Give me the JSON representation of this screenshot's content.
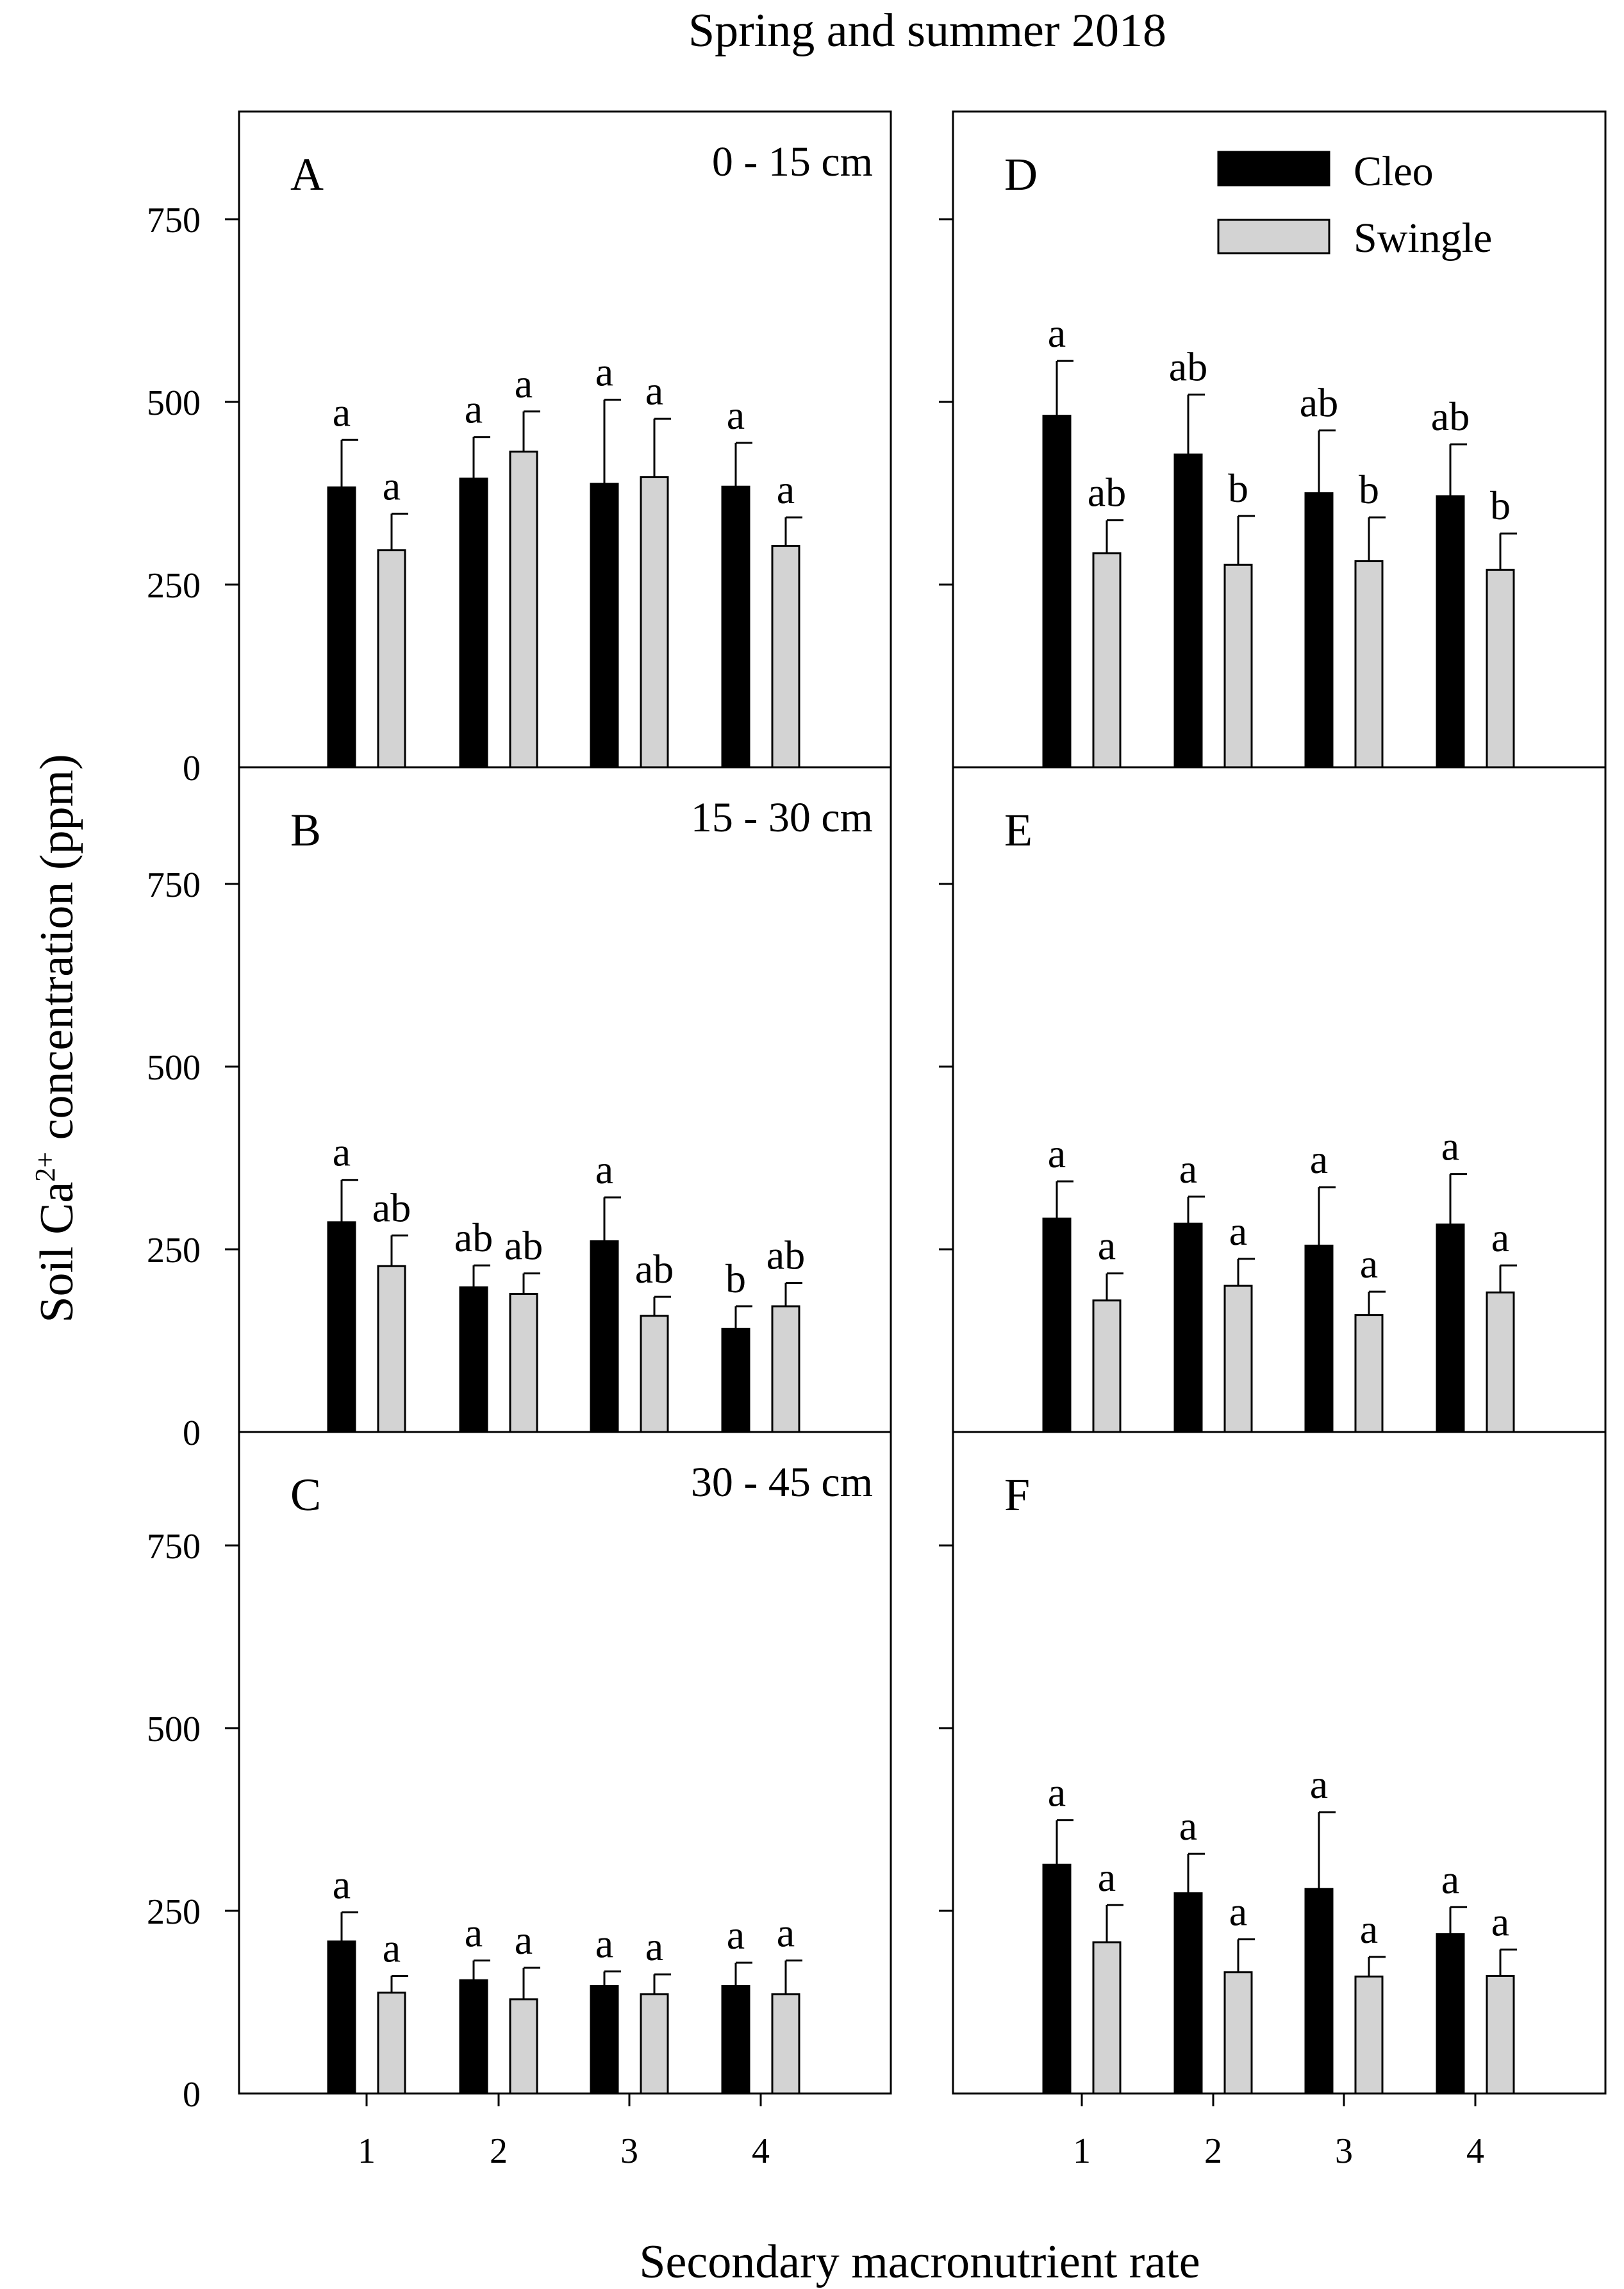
{
  "title": "Spring and summer 2018",
  "xlabel": "Secondary macronutrient rate",
  "ylabel": {
    "prefix": "Soil Ca",
    "sup": "2+",
    "suffix": " concentration (ppm)"
  },
  "legend": [
    {
      "name": "Cleo",
      "color": "#000000"
    },
    {
      "name": "Swingle",
      "color": "#d3d3d3"
    }
  ],
  "colors": {
    "cleo": "#000000",
    "swingle": "#d3d3d3",
    "frame": "#000000"
  },
  "chart_data": {
    "type": "bar",
    "categories": [
      "1",
      "2",
      "3",
      "4"
    ],
    "ylim": [
      0,
      900
    ],
    "yticks": [
      0,
      250,
      500,
      750
    ],
    "panels": [
      {
        "id": "A",
        "depth": "0 - 15 cm",
        "series": [
          {
            "name": "Cleo",
            "values": [
              383,
              395,
              388,
              384
            ],
            "errors": [
              65,
              57,
              115,
              60
            ],
            "letters": [
              "a",
              "a",
              "a",
              "a"
            ]
          },
          {
            "name": "Swingle",
            "values": [
              297,
              432,
              397,
              303
            ],
            "errors": [
              50,
              55,
              80,
              39
            ],
            "letters": [
              "a",
              "a",
              "a",
              "a"
            ]
          }
        ]
      },
      {
        "id": "B",
        "depth": "15 - 30 cm",
        "series": [
          {
            "name": "Cleo",
            "values": [
              287,
              198,
              261,
              141
            ],
            "errors": [
              58,
              30,
              60,
              31
            ],
            "letters": [
              "a",
              "ab",
              "a",
              "b"
            ]
          },
          {
            "name": "Swingle",
            "values": [
              227,
              189,
              159,
              172
            ],
            "errors": [
              42,
              28,
              26,
              32
            ],
            "letters": [
              "ab",
              "ab",
              "ab",
              "ab"
            ]
          }
        ]
      },
      {
        "id": "C",
        "depth": "30 - 45 cm",
        "series": [
          {
            "name": "Cleo",
            "values": [
              208,
              155,
              147,
              147
            ],
            "errors": [
              40,
              27,
              20,
              32
            ],
            "letters": [
              "a",
              "a",
              "a",
              "a"
            ]
          },
          {
            "name": "Swingle",
            "values": [
              138,
              129,
              136,
              136
            ],
            "errors": [
              23,
              43,
              27,
              46
            ],
            "letters": [
              "a",
              "a",
              "a",
              "a"
            ]
          }
        ]
      },
      {
        "id": "D",
        "depth": "",
        "series": [
          {
            "name": "Cleo",
            "values": [
              481,
              428,
              375,
              371
            ],
            "errors": [
              75,
              82,
              86,
              71
            ],
            "letters": [
              "a",
              "ab",
              "ab",
              "ab"
            ]
          },
          {
            "name": "Swingle",
            "values": [
              293,
              277,
              282,
              270
            ],
            "errors": [
              45,
              67,
              60,
              50
            ],
            "letters": [
              "ab",
              "b",
              "b",
              "b"
            ]
          }
        ]
      },
      {
        "id": "E",
        "depth": "",
        "series": [
          {
            "name": "Cleo",
            "values": [
              292,
              285,
              255,
              284
            ],
            "errors": [
              51,
              37,
              80,
              69
            ],
            "letters": [
              "a",
              "a",
              "a",
              "a"
            ]
          },
          {
            "name": "Swingle",
            "values": [
              180,
              200,
              160,
              191
            ],
            "errors": [
              37,
              37,
              32,
              37
            ],
            "letters": [
              "a",
              "a",
              "a",
              "a"
            ]
          }
        ]
      },
      {
        "id": "F",
        "depth": "",
        "series": [
          {
            "name": "Cleo",
            "values": [
              313,
              274,
              280,
              218
            ],
            "errors": [
              61,
              54,
              105,
              37
            ],
            "letters": [
              "a",
              "a",
              "a",
              "a"
            ]
          },
          {
            "name": "Swingle",
            "values": [
              207,
              166,
              160,
              161
            ],
            "errors": [
              51,
              45,
              27,
              36
            ],
            "letters": [
              "a",
              "a",
              "a",
              "a"
            ]
          }
        ]
      }
    ]
  }
}
